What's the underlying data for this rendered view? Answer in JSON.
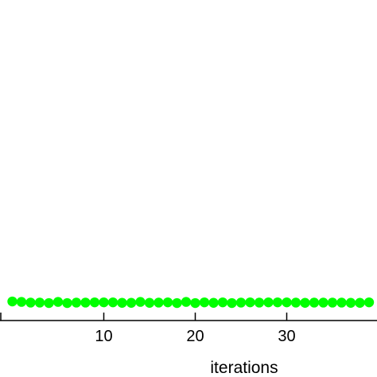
{
  "chart_data": {
    "type": "scatter",
    "title": "",
    "xlabel": "iterations",
    "ylabel": "",
    "xlim": [
      -1,
      39
    ],
    "ylim": [
      0,
      1
    ],
    "x_ticks": [
      10,
      20,
      30
    ],
    "x_tick_labels": [
      "10",
      "20",
      "30"
    ],
    "grid": false,
    "legend": "none",
    "marker_color": "#00ff00",
    "series": [
      {
        "x": [
          0,
          1,
          2,
          3,
          4,
          5,
          6,
          7,
          8,
          9,
          10,
          11,
          12,
          13,
          14,
          15,
          16,
          17,
          18,
          19,
          20,
          21,
          22,
          23,
          24,
          25,
          26,
          27,
          28,
          29,
          30,
          31,
          32,
          33,
          34,
          35,
          36,
          37,
          38,
          39
        ],
        "y": [
          0.0595,
          0.0581,
          0.0559,
          0.0559,
          0.0545,
          0.0581,
          0.0545,
          0.0559,
          0.0559,
          0.0567,
          0.0567,
          0.0567,
          0.0552,
          0.0552,
          0.0581,
          0.0552,
          0.0559,
          0.0567,
          0.0545,
          0.0581,
          0.0545,
          0.0567,
          0.0552,
          0.0567,
          0.0545,
          0.0559,
          0.0567,
          0.0559,
          0.0567,
          0.0567,
          0.0567,
          0.0559,
          0.0552,
          0.0559,
          0.0559,
          0.0559,
          0.0559,
          0.0552,
          0.0552,
          0.0567
        ]
      }
    ]
  }
}
